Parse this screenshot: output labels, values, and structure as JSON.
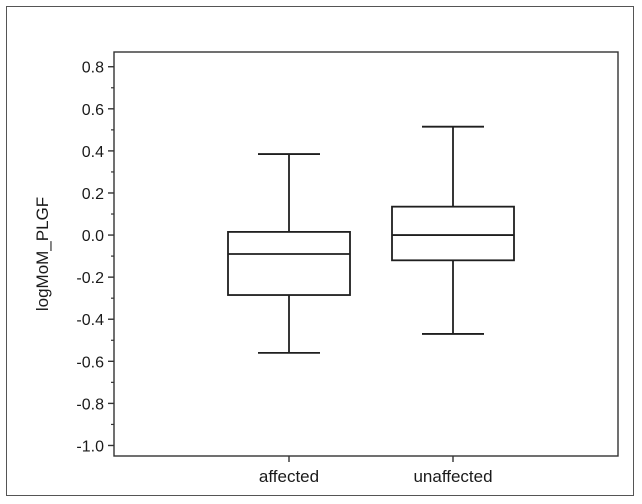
{
  "chart_data": {
    "type": "box",
    "ylabel": "logMoM_PLGF",
    "xlabel": "",
    "ylim": [
      -1.05,
      0.87
    ],
    "yticks": [
      0.8,
      0.6,
      0.4,
      0.2,
      0.0,
      -0.2,
      -0.4,
      -0.6,
      -0.8,
      -1.0
    ],
    "ytick_labels": [
      "0.8",
      "0.6",
      "0.4",
      "0.2",
      "0.0",
      "-0.2",
      "-0.4",
      "-0.6",
      "-0.8",
      "-1.0"
    ],
    "categories": [
      "affected",
      "unaffected"
    ],
    "boxes": [
      {
        "category": "affected",
        "whisker_low": -0.56,
        "q1": -0.285,
        "median": -0.09,
        "q3": 0.015,
        "whisker_high": 0.385
      },
      {
        "category": "unaffected",
        "whisker_low": -0.47,
        "q1": -0.12,
        "median": 0.0,
        "q3": 0.135,
        "whisker_high": 0.515
      }
    ],
    "grid": false,
    "legend": "none"
  }
}
